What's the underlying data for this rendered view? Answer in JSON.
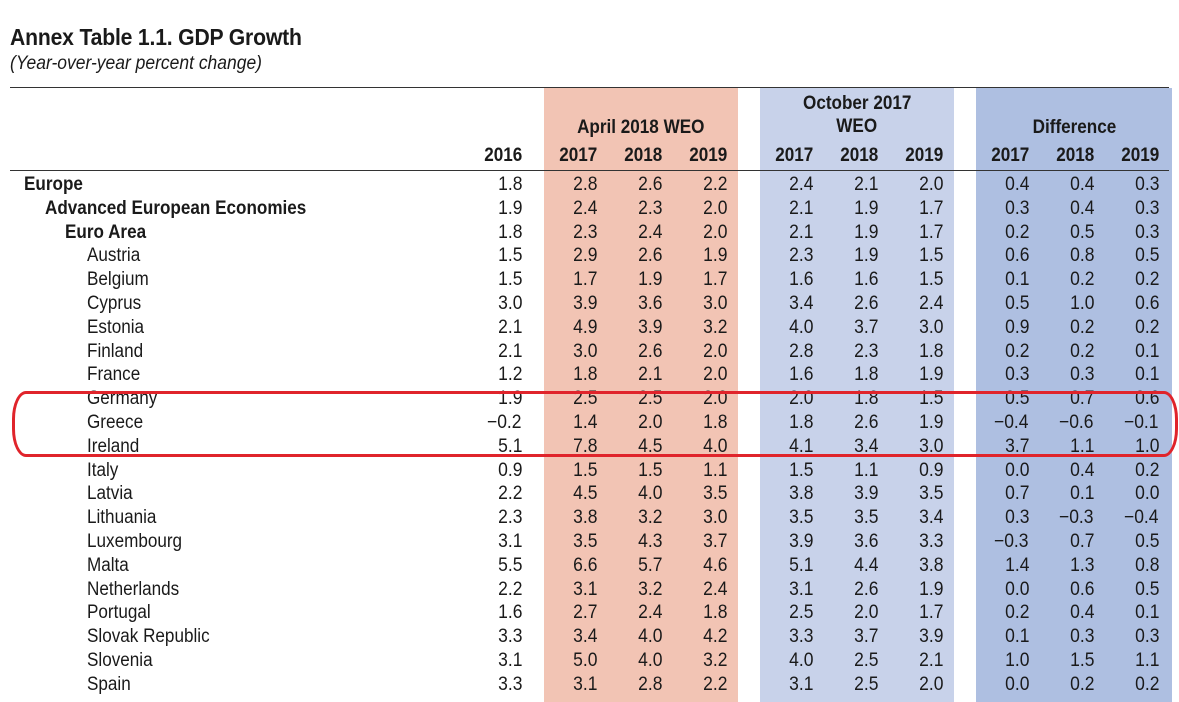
{
  "title": "Annex Table 1.1. GDP Growth",
  "subtitle": "(Year-over-year percent change)",
  "groups": {
    "april": "April 2018 WEO",
    "october_line1": "October 2017",
    "october_line2": "WEO",
    "difference": "Difference"
  },
  "years": {
    "base": "2016",
    "april": [
      "2017",
      "2018",
      "2019"
    ],
    "october": [
      "2017",
      "2018",
      "2019"
    ],
    "difference": [
      "2017",
      "2018",
      "2019"
    ]
  },
  "rows": [
    {
      "name": "Europe",
      "level": 0,
      "bold": true,
      "v": [
        "1.8",
        "2.8",
        "2.6",
        "2.2",
        "2.4",
        "2.1",
        "2.0",
        "0.4",
        "0.4",
        "0.3"
      ]
    },
    {
      "name": "Advanced European Economies",
      "level": 1,
      "bold": true,
      "v": [
        "1.9",
        "2.4",
        "2.3",
        "2.0",
        "2.1",
        "1.9",
        "1.7",
        "0.3",
        "0.4",
        "0.3"
      ]
    },
    {
      "name": "Euro Area",
      "level": 2,
      "bold": true,
      "v": [
        "1.8",
        "2.3",
        "2.4",
        "2.0",
        "2.1",
        "1.9",
        "1.7",
        "0.2",
        "0.5",
        "0.3"
      ]
    },
    {
      "name": "Austria",
      "level": 3,
      "bold": false,
      "v": [
        "1.5",
        "2.9",
        "2.6",
        "1.9",
        "2.3",
        "1.9",
        "1.5",
        "0.6",
        "0.8",
        "0.5"
      ]
    },
    {
      "name": "Belgium",
      "level": 3,
      "bold": false,
      "v": [
        "1.5",
        "1.7",
        "1.9",
        "1.7",
        "1.6",
        "1.6",
        "1.5",
        "0.1",
        "0.2",
        "0.2"
      ]
    },
    {
      "name": "Cyprus",
      "level": 3,
      "bold": false,
      "v": [
        "3.0",
        "3.9",
        "3.6",
        "3.0",
        "3.4",
        "2.6",
        "2.4",
        "0.5",
        "1.0",
        "0.6"
      ]
    },
    {
      "name": "Estonia",
      "level": 3,
      "bold": false,
      "v": [
        "2.1",
        "4.9",
        "3.9",
        "3.2",
        "4.0",
        "3.7",
        "3.0",
        "0.9",
        "0.2",
        "0.2"
      ]
    },
    {
      "name": "Finland",
      "level": 3,
      "bold": false,
      "v": [
        "2.1",
        "3.0",
        "2.6",
        "2.0",
        "2.8",
        "2.3",
        "1.8",
        "0.2",
        "0.2",
        "0.1"
      ]
    },
    {
      "name": "France",
      "level": 3,
      "bold": false,
      "v": [
        "1.2",
        "1.8",
        "2.1",
        "2.0",
        "1.6",
        "1.8",
        "1.9",
        "0.3",
        "0.3",
        "0.1"
      ]
    },
    {
      "name": "Germany",
      "level": 3,
      "bold": false,
      "v": [
        "1.9",
        "2.5",
        "2.5",
        "2.0",
        "2.0",
        "1.8",
        "1.5",
        "0.5",
        "0.7",
        "0.6"
      ]
    },
    {
      "name": "Greece",
      "level": 3,
      "bold": false,
      "v": [
        "−0.2",
        "1.4",
        "2.0",
        "1.8",
        "1.8",
        "2.6",
        "1.9",
        "−0.4",
        "−0.6",
        "−0.1"
      ]
    },
    {
      "name": "Ireland",
      "level": 3,
      "bold": false,
      "v": [
        "5.1",
        "7.8",
        "4.5",
        "4.0",
        "4.1",
        "3.4",
        "3.0",
        "3.7",
        "1.1",
        "1.0"
      ]
    },
    {
      "name": "Italy",
      "level": 3,
      "bold": false,
      "v": [
        "0.9",
        "1.5",
        "1.5",
        "1.1",
        "1.5",
        "1.1",
        "0.9",
        "0.0",
        "0.4",
        "0.2"
      ]
    },
    {
      "name": "Latvia",
      "level": 3,
      "bold": false,
      "v": [
        "2.2",
        "4.5",
        "4.0",
        "3.5",
        "3.8",
        "3.9",
        "3.5",
        "0.7",
        "0.1",
        "0.0"
      ]
    },
    {
      "name": "Lithuania",
      "level": 3,
      "bold": false,
      "v": [
        "2.3",
        "3.8",
        "3.2",
        "3.0",
        "3.5",
        "3.5",
        "3.4",
        "0.3",
        "−0.3",
        "−0.4"
      ]
    },
    {
      "name": "Luxembourg",
      "level": 3,
      "bold": false,
      "v": [
        "3.1",
        "3.5",
        "4.3",
        "3.7",
        "3.9",
        "3.6",
        "3.3",
        "−0.3",
        "0.7",
        "0.5"
      ]
    },
    {
      "name": "Malta",
      "level": 3,
      "bold": false,
      "v": [
        "5.5",
        "6.6",
        "5.7",
        "4.6",
        "5.1",
        "4.4",
        "3.8",
        "1.4",
        "1.3",
        "0.8"
      ]
    },
    {
      "name": "Netherlands",
      "level": 3,
      "bold": false,
      "v": [
        "2.2",
        "3.1",
        "3.2",
        "2.4",
        "3.1",
        "2.6",
        "1.9",
        "0.0",
        "0.6",
        "0.5"
      ]
    },
    {
      "name": "Portugal",
      "level": 3,
      "bold": false,
      "v": [
        "1.6",
        "2.7",
        "2.4",
        "1.8",
        "2.5",
        "2.0",
        "1.7",
        "0.2",
        "0.4",
        "0.1"
      ]
    },
    {
      "name": "Slovak Republic",
      "level": 3,
      "bold": false,
      "v": [
        "3.3",
        "3.4",
        "4.0",
        "4.2",
        "3.3",
        "3.7",
        "3.9",
        "0.1",
        "0.3",
        "0.3"
      ]
    },
    {
      "name": "Slovenia",
      "level": 3,
      "bold": false,
      "v": [
        "3.1",
        "5.0",
        "4.0",
        "3.2",
        "4.0",
        "2.5",
        "2.1",
        "1.0",
        "1.5",
        "1.1"
      ]
    },
    {
      "name": "Spain",
      "level": 3,
      "bold": false,
      "v": [
        "3.3",
        "3.1",
        "2.8",
        "2.2",
        "3.1",
        "2.5",
        "2.0",
        "0.0",
        "0.2",
        "0.2"
      ]
    }
  ],
  "colors": {
    "april_band": "#f2c4b4",
    "october_band": "#c8d2ea",
    "difference_band": "#aebfe1",
    "annotation": "#e0242b"
  }
}
